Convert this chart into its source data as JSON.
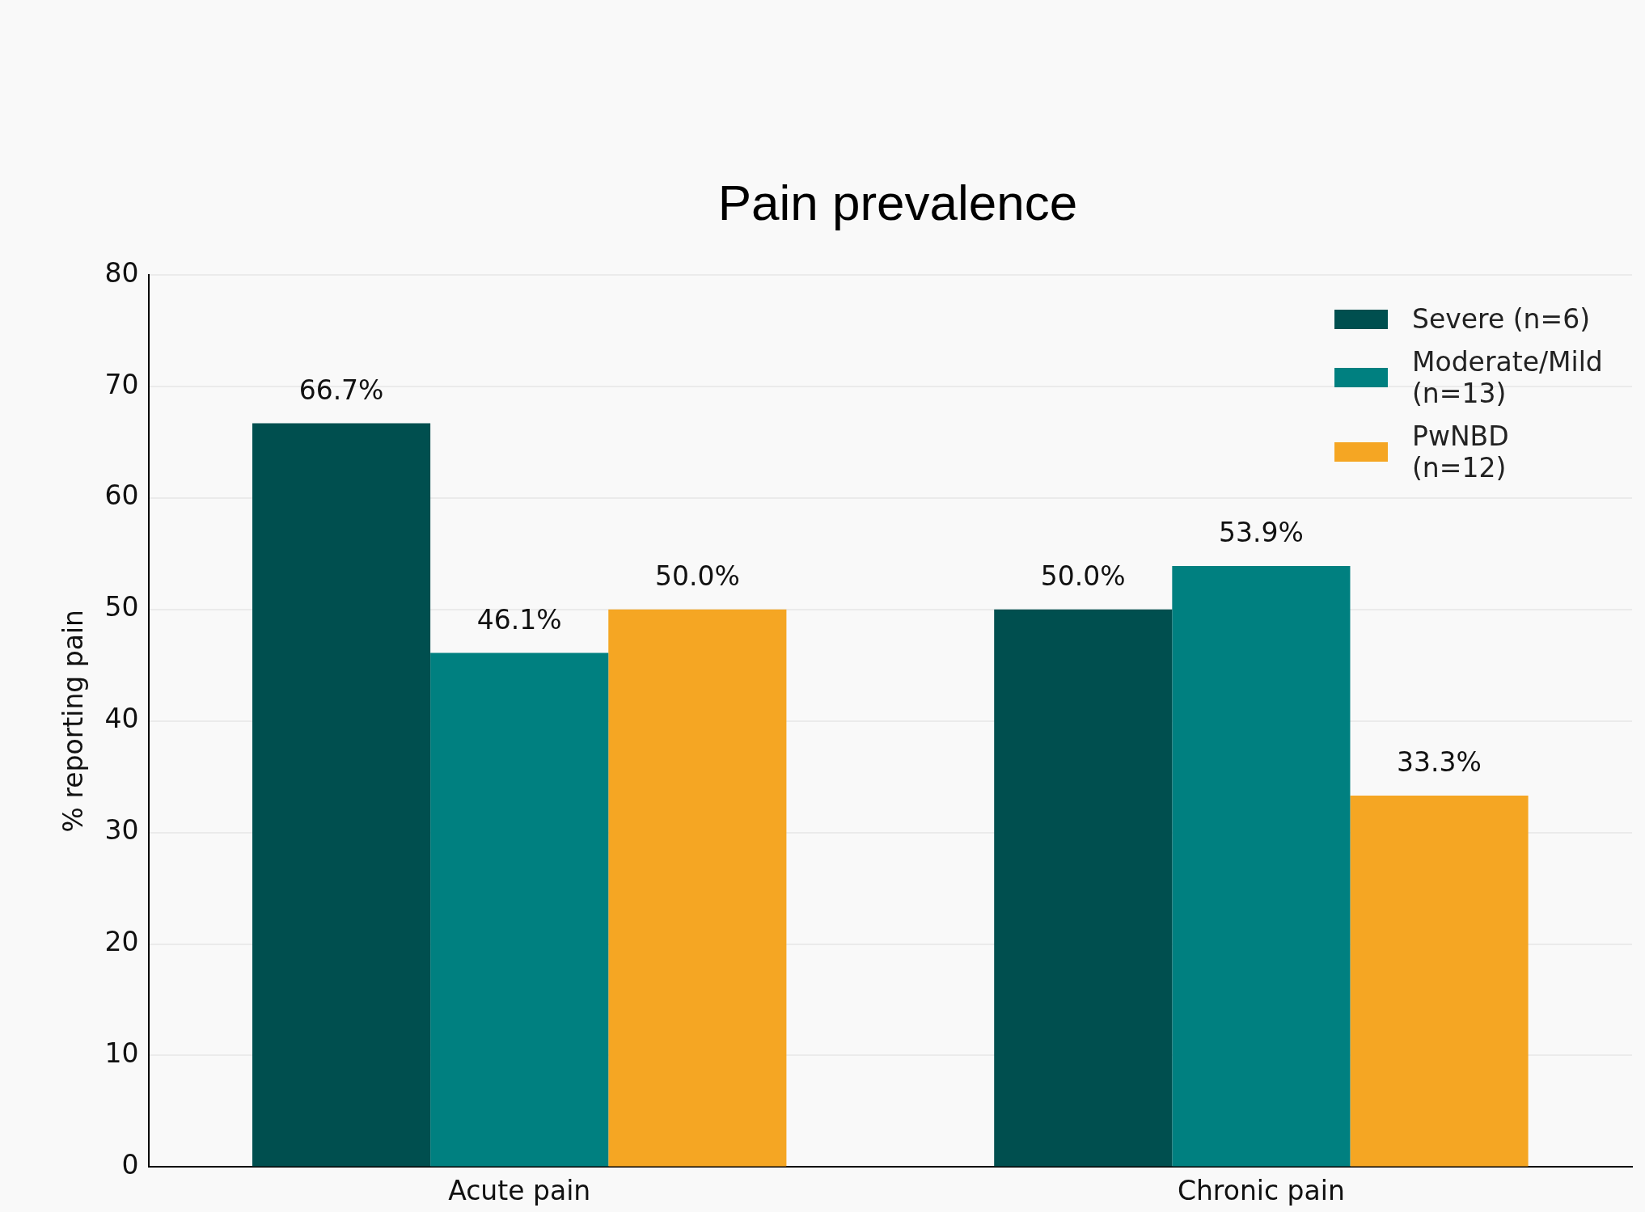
{
  "chart_data": {
    "type": "bar",
    "title": "Pain prevalence",
    "ylabel": "% reporting pain",
    "categories": [
      "Acute pain",
      "Chronic pain"
    ],
    "series": [
      {
        "name": "Severe (n=6)",
        "color": "#004f4f",
        "values": [
          66.7,
          50.0
        ],
        "value_labels": [
          "66.7%",
          "50.0%"
        ]
      },
      {
        "name": "Moderate/Mild (n=13)",
        "color": "#008080",
        "values": [
          46.1,
          53.9
        ],
        "value_labels": [
          "46.1%",
          "53.9%"
        ]
      },
      {
        "name": "PwNBD (n=12)",
        "color": "#f5a623",
        "values": [
          50.0,
          33.3
        ],
        "value_labels": [
          "50.0%",
          "33.3%"
        ]
      }
    ],
    "ylim": [
      0,
      80
    ],
    "yticks": [
      0,
      10,
      20,
      30,
      40,
      50,
      60,
      70,
      80
    ],
    "grid": "y",
    "legend": "top right"
  }
}
